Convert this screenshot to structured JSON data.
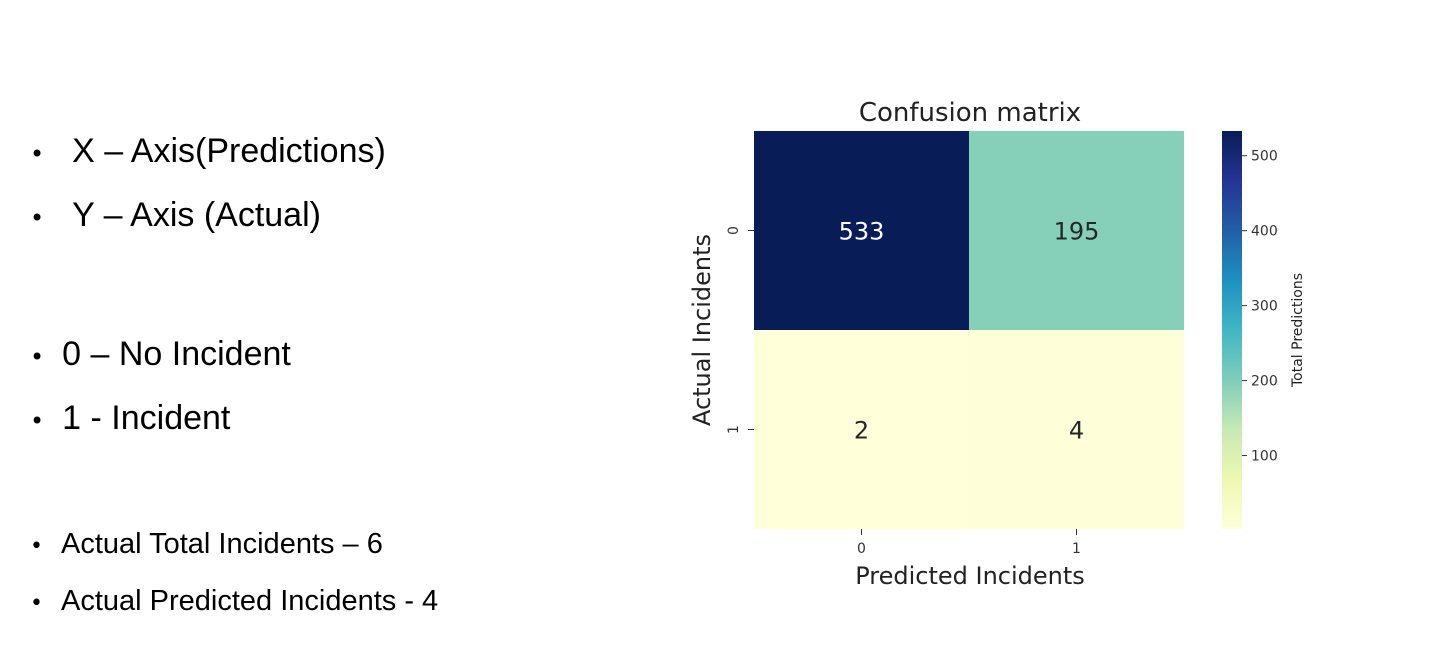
{
  "bullets": {
    "axes": [
      "X – Axis(Predictions)",
      "Y – Axis (Actual)"
    ],
    "legend": [
      "0 – No Incident",
      "1 -  Incident"
    ],
    "stats": [
      "Actual Total Incidents – 6",
      "Actual Predicted Incidents - 4"
    ]
  },
  "chart_data": {
    "type": "heatmap",
    "title": "Confusion matrix",
    "xlabel": "Predicted Incidents",
    "ylabel": "Actual Incidents",
    "x_categories": [
      "0",
      "1"
    ],
    "y_categories": [
      "0",
      "1"
    ],
    "values": [
      [
        533,
        195
      ],
      [
        2,
        4
      ]
    ],
    "colorbar": {
      "label": "Total Predictions",
      "ticks": [
        100,
        200,
        300,
        400,
        500
      ],
      "range": [
        2,
        533
      ],
      "colormap": "YlGnBu"
    }
  }
}
